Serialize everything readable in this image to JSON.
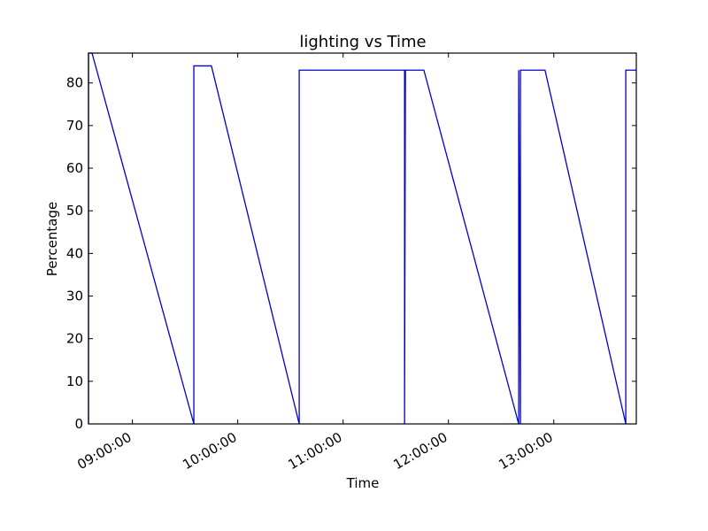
{
  "chart_data": {
    "type": "line",
    "title": "lighting vs Time",
    "xlabel": "Time",
    "ylabel": "Percentage",
    "ylim": [
      0,
      87
    ],
    "xlim": [
      "08:35:00",
      "13:47:00"
    ],
    "yticks": [
      0,
      10,
      20,
      30,
      40,
      50,
      60,
      70,
      80
    ],
    "xticks": [
      "09:00:00",
      "10:00:00",
      "11:00:00",
      "12:00:00",
      "13:00:00"
    ],
    "grid": false,
    "legend": "none",
    "color": "#0000cc",
    "series": [
      {
        "points": [
          [
            "08:35:00",
            0
          ],
          [
            "08:35:00",
            87
          ],
          [
            "08:37:00",
            87
          ],
          [
            "09:35:00",
            0
          ],
          [
            "09:35:00",
            84
          ],
          [
            "09:45:00",
            84
          ],
          [
            "10:35:00",
            0
          ],
          [
            "10:35:00",
            83
          ],
          [
            "11:35:00",
            83
          ],
          [
            "11:35:00",
            0
          ],
          [
            "11:35:30",
            83
          ],
          [
            "11:46:00",
            83
          ],
          [
            "12:40:00",
            0
          ],
          [
            "12:40:00",
            83
          ],
          [
            "12:41:00",
            0
          ],
          [
            "12:41:00",
            83
          ],
          [
            "12:55:00",
            83
          ],
          [
            "13:41:00",
            0
          ],
          [
            "13:41:00",
            83
          ],
          [
            "13:47:00",
            83
          ]
        ]
      }
    ]
  }
}
